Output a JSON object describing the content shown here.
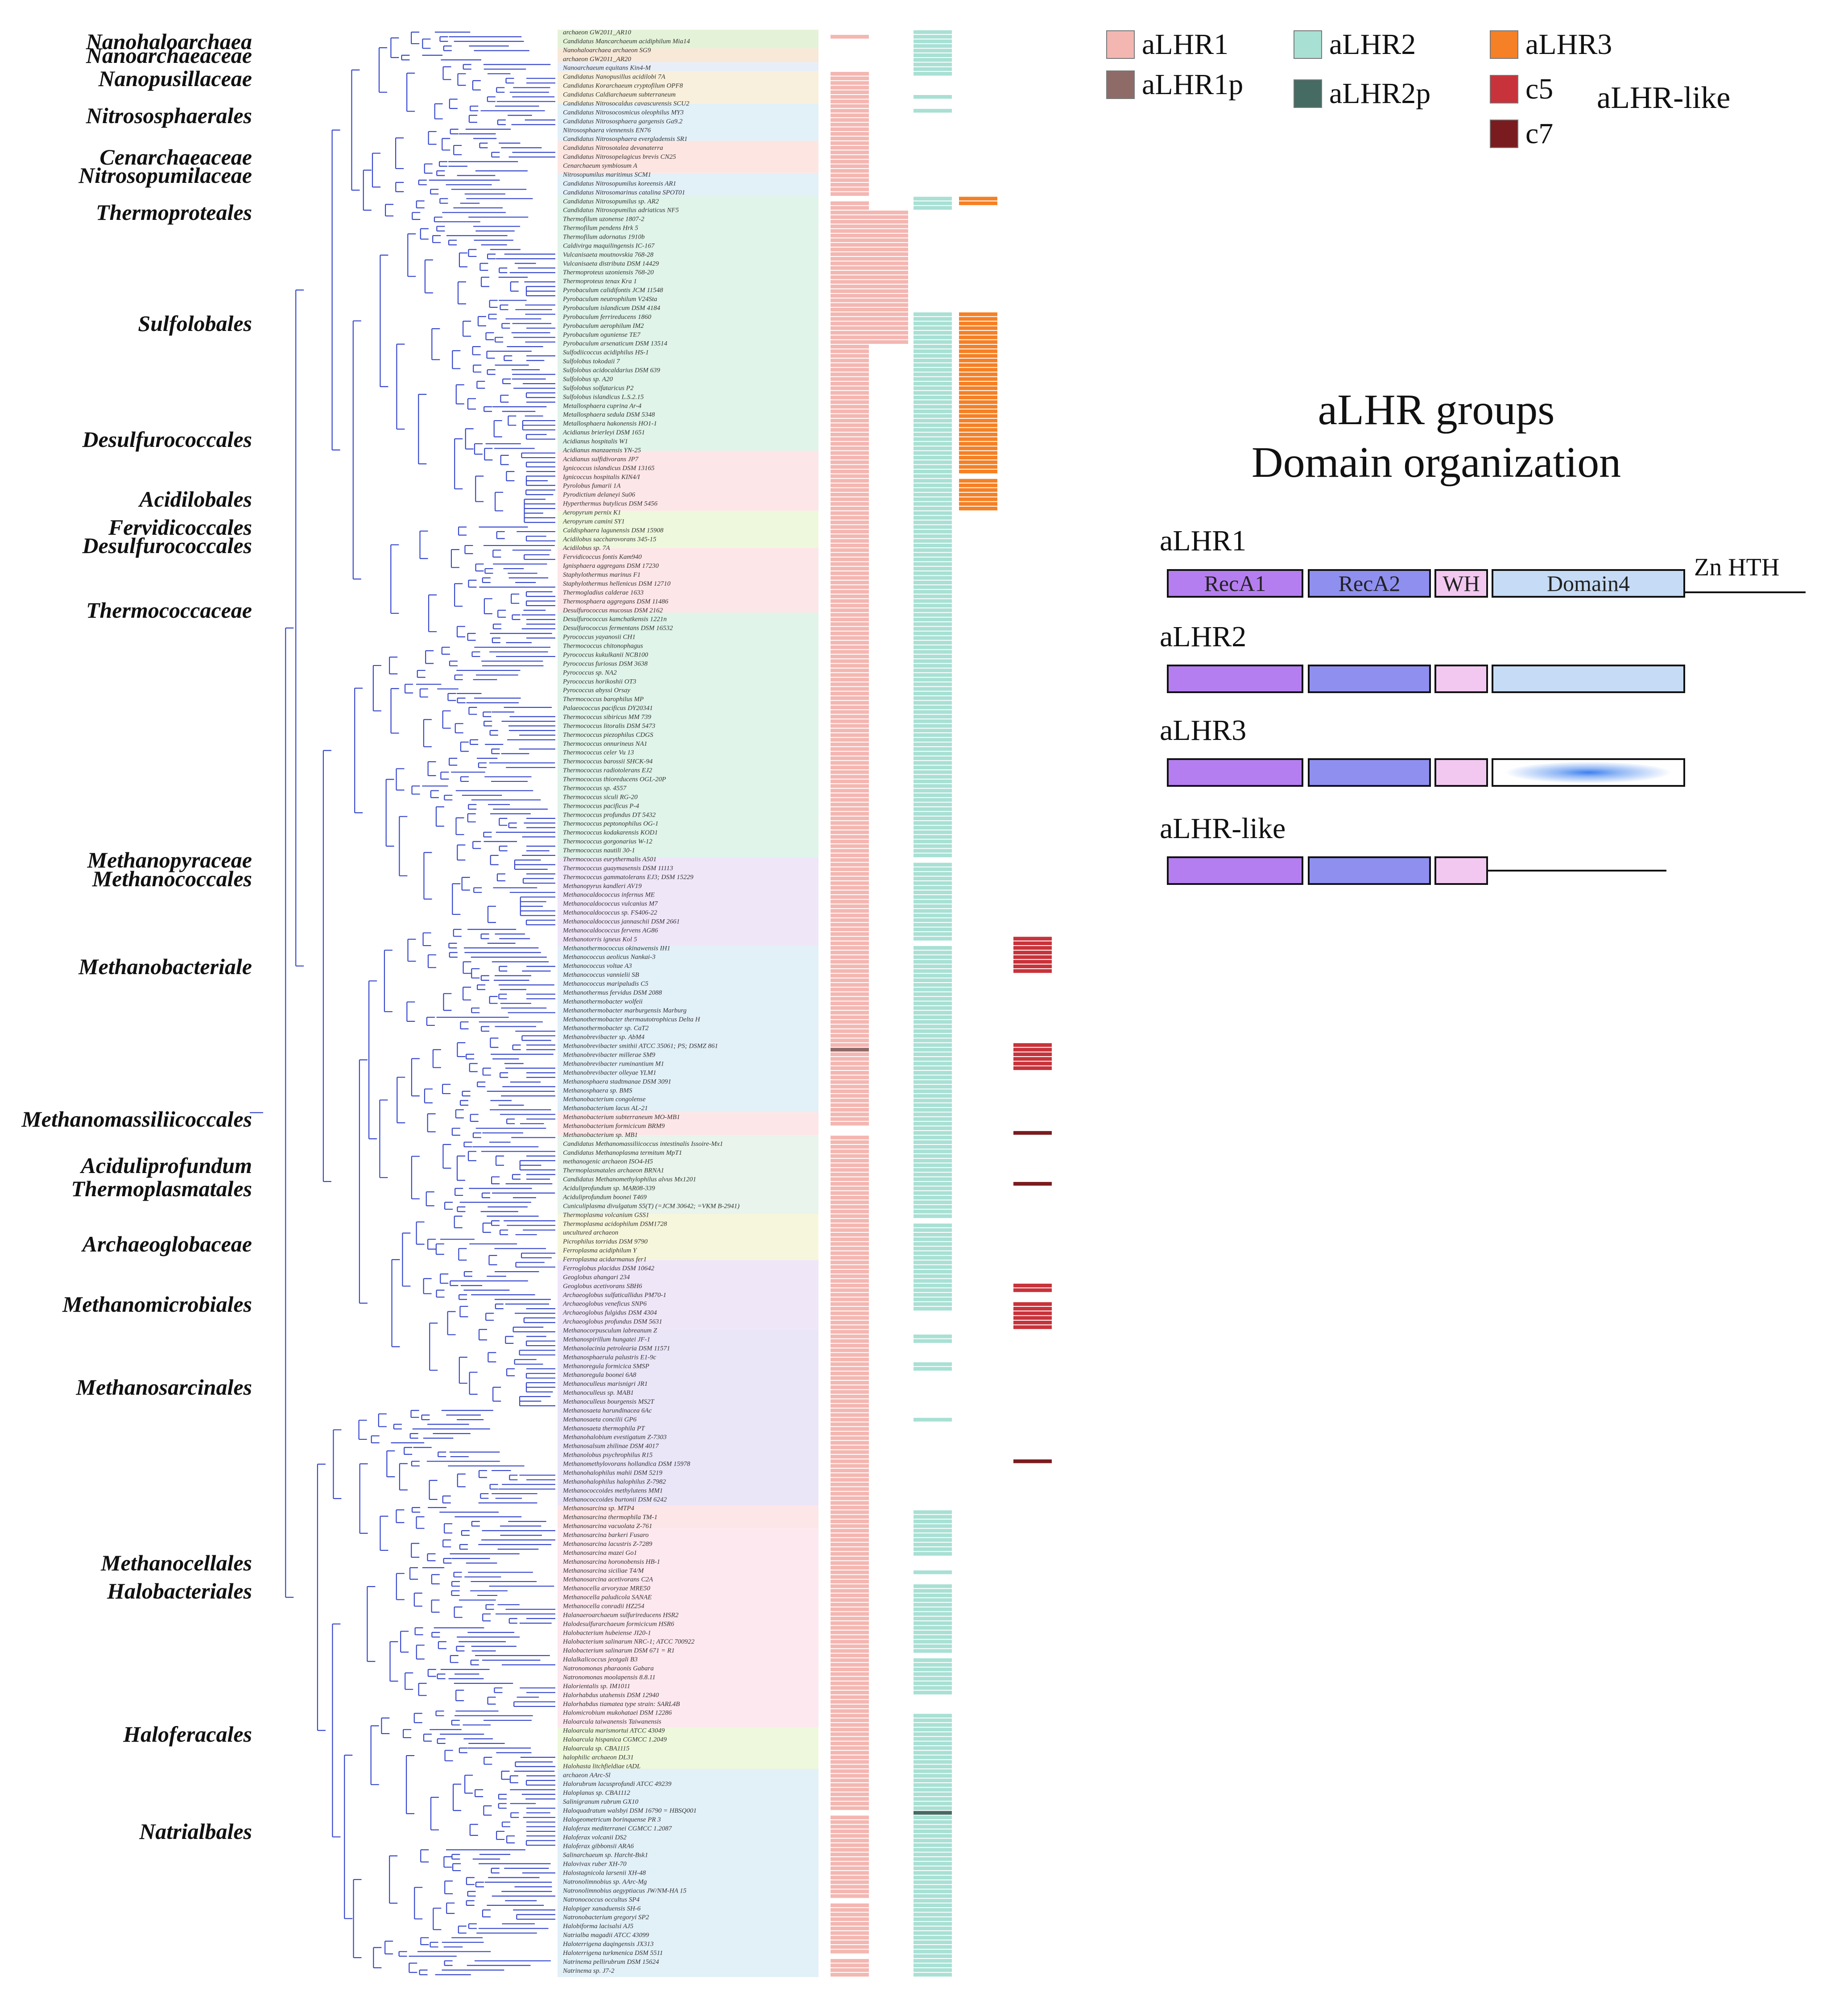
{
  "colors": {
    "aLHR1": "#f4b6b1",
    "aLHR1p": "#8f6b68",
    "aLHR2": "#a8e0d4",
    "aLHR2p": "#466b62",
    "aLHR3": "#f58025",
    "c5": "#c8323a",
    "c7": "#7a1c1f",
    "branch": "#3344cc",
    "recA1": "#b57ef0",
    "recA2": "#8f8ff0",
    "wh": "#f2c8f0",
    "domain4": "#c6dbf5"
  },
  "legend": {
    "items": [
      {
        "key": "aLHR1",
        "label": "aLHR1"
      },
      {
        "key": "aLHR2",
        "label": "aLHR2"
      },
      {
        "key": "aLHR3",
        "label": "aLHR3"
      },
      {
        "key": "aLHR1p",
        "label": "aLHR1p"
      },
      {
        "key": "aLHR2p",
        "label": "aLHR2p"
      },
      {
        "key": "c5",
        "label": "c5"
      },
      {
        "key": "c7",
        "label": "c7"
      }
    ],
    "group_label": "aLHR-like"
  },
  "domain_panel": {
    "title_line1": "aLHR groups",
    "title_line2": "Domain organization",
    "groups": [
      {
        "name": "aLHR1",
        "recA1": "RecA1",
        "recA2": "RecA2",
        "wh": "WH",
        "domain4": "Domain4",
        "extra": "Zn HTH"
      },
      {
        "name": "aLHR2"
      },
      {
        "name": "aLHR3"
      },
      {
        "name": "aLHR-like"
      }
    ]
  },
  "clades": [
    {
      "name": "Nanohaloarchaea",
      "row": 2
    },
    {
      "name": "Nanoarchaeaceae",
      "row": 5
    },
    {
      "name": "Nanopusillaceae",
      "row": 10
    },
    {
      "name": "Nitrososphaerales",
      "row": 18
    },
    {
      "name": "Cenarchaeaceae",
      "row": 27
    },
    {
      "name": "Nitrosopumilaceae",
      "row": 31
    },
    {
      "name": "Thermoproteales",
      "row": 39
    },
    {
      "name": "Sulfolobales",
      "row": 63
    },
    {
      "name": "Desulfurococcales",
      "row": 88
    },
    {
      "name": "Acidilobales",
      "row": 101
    },
    {
      "name": "Fervidicoccales",
      "row": 107
    },
    {
      "name": "Desulfurococcales",
      "row": 111
    },
    {
      "name": "Thermococcaceae",
      "row": 125
    },
    {
      "name": "Methanopyraceae",
      "row": 179
    },
    {
      "name": "Methanococcales",
      "row": 183
    },
    {
      "name": "Methanobacteriale",
      "row": 202
    },
    {
      "name": "Methanomassiliicoccales",
      "row": 235
    },
    {
      "name": "Aciduliprofundum",
      "row": 245
    },
    {
      "name": "Thermoplasmatales",
      "row": 250
    },
    {
      "name": "Archaeoglobaceae",
      "row": 262
    },
    {
      "name": "Methanomicrobiales",
      "row": 275
    },
    {
      "name": "Methanosarcinales",
      "row": 293
    },
    {
      "name": "Methanocellales",
      "row": 331
    },
    {
      "name": "Halobacteriales",
      "row": 337
    },
    {
      "name": "Haloferacales",
      "row": 368
    },
    {
      "name": "Natrialbales",
      "row": 389
    }
  ],
  "blocks": [
    {
      "start": 0,
      "end": 3,
      "color": "#e4f3d8"
    },
    {
      "start": 4,
      "end": 6,
      "color": "#f8e8d8"
    },
    {
      "start": 7,
      "end": 8,
      "color": "#e8eef8"
    },
    {
      "start": 9,
      "end": 15,
      "color": "#f8f0dc"
    },
    {
      "start": 16,
      "end": 23,
      "color": "#e2f0f8"
    },
    {
      "start": 24,
      "end": 30,
      "color": "#fde6e2"
    },
    {
      "start": 31,
      "end": 35,
      "color": "#e2f0f8"
    },
    {
      "start": 36,
      "end": 67,
      "color": "#e0f4ea"
    },
    {
      "start": 68,
      "end": 90,
      "color": "#e0f4ea"
    },
    {
      "start": 91,
      "end": 103,
      "color": "#fde6e8"
    },
    {
      "start": 104,
      "end": 111,
      "color": "#eef8dc"
    },
    {
      "start": 112,
      "end": 125,
      "color": "#fde6e8"
    },
    {
      "start": 126,
      "end": 178,
      "color": "#e0f4ea"
    },
    {
      "start": 179,
      "end": 197,
      "color": "#efe6f8"
    },
    {
      "start": 198,
      "end": 233,
      "color": "#e2f0f8"
    },
    {
      "start": 234,
      "end": 238,
      "color": "#fde6e8"
    },
    {
      "start": 239,
      "end": 255,
      "color": "#e8f4ec"
    },
    {
      "start": 256,
      "end": 265,
      "color": "#f6f6dc"
    },
    {
      "start": 266,
      "end": 280,
      "color": "#efe6f8"
    },
    {
      "start": 281,
      "end": 318,
      "color": "#eae6f8"
    },
    {
      "start": 319,
      "end": 323,
      "color": "#fde6e8"
    },
    {
      "start": 324,
      "end": 366,
      "color": "#fde8f0"
    },
    {
      "start": 367,
      "end": 375,
      "color": "#eef8dc"
    },
    {
      "start": 376,
      "end": 420,
      "color": "#e2f0f8"
    }
  ],
  "taxa": [
    "archaeon GW2011_AR10",
    "Candidatus Mancarchaeum acidiphilum Mia14",
    "Nanohaloarchaea archaeon SG9",
    "archaeon GW2011_AR20",
    "Nanoarchaeum equitans Kin4-M",
    "Candidatus Nanopusillus acidilobi 7A",
    "Candidatus Korarchaeum cryptofilum OPF8",
    "Candidatus Caldiarchaeum subterraneum",
    "Candidatus Nitrosocaldus cavascurensis SCU2",
    "Candidatus Nitrosocosmicus oleophilus MY3",
    "Candidatus Nitrososphaera gargensis Ga9.2",
    "Nitrososphaera viennensis EN76",
    "Candidatus Nitrososphaera evergladensis SR1",
    "Candidatus Nitrosotalea devanaterra",
    "Candidatus Nitrosopelagicus brevis CN25",
    "Cenarchaeum symbiosum A",
    "Nitrosopumilus maritimus SCM1",
    "Candidatus Nitrosopumilus koreensis AR1",
    "Candidatus Nitrosomarinus catalina SPOT01",
    "Candidatus Nitrosopumilus sp. AR2",
    "Candidatus Nitrosopumilus adriaticus NF5",
    "Thermofilum uzonense 1807-2",
    "Thermofilum pendens Hrk 5",
    "Thermofilum adornatus 1910b",
    "Caldivirga maquilingensis IC-167",
    "Vulcanisaeta moutnovskia 768-28",
    "Vulcanisaeta distributa DSM 14429",
    "Thermoproteus uzoniensis 768-20",
    "Thermoproteus tenax Kra 1",
    "Pyrobaculum calidifontis JCM 11548",
    "Pyrobaculum neutrophilum V24Sta",
    "Pyrobaculum islandicum DSM 4184",
    "Pyrobaculum ferrireducens 1860",
    "Pyrobaculum aerophilum IM2",
    "Pyrobaculum oguniense TE7",
    "Pyrobaculum arsenaticum DSM 13514",
    "Sulfodiicoccus acidiphilus HS-1",
    "Sulfolobus tokodaii 7",
    "Sulfolobus acidocaldarius DSM 639",
    "Sulfolobus sp. A20",
    "Sulfolobus solfataricus P2",
    "Sulfolobus islandicus L.S.2.15",
    "Metallosphaera cuprina Ar-4",
    "Metallosphaera sedula DSM 5348",
    "Metallosphaera hakonensis HO1-1",
    "Acidianus brierleyi DSM 1651",
    "Acidianus hospitalis W1",
    "Acidianus manzaensis YN-25",
    "Acidianus sulfidivorans JP7",
    "Ignicoccus islandicus DSM 13165",
    "Ignicoccus hospitalis KIN4/I",
    "Pyrolobus fumarii 1A",
    "Pyrodictium delaneyi Su06",
    "Hyperthermus butylicus DSM 5456",
    "Aeropyrum pernix K1",
    "Aeropyrum camini SY1",
    "Caldisphaera lagunensis DSM 15908",
    "Acidilobus saccharovorans 345-15",
    "Acidilobus sp. 7A",
    "Fervidicoccus fontis Kam940",
    "Ignisphaera aggregans DSM 17230",
    "Staphylothermus marinus F1",
    "Staphylothermus hellenicus DSM 12710",
    "Thermogladius calderae 1633",
    "Thermosphaera aggregans DSM 11486",
    "Desulfurococcus mucosus DSM 2162",
    "Desulfurococcus kamchatkensis 1221n",
    "Desulfurococcus fermentans DSM 16532",
    "Pyrococcus yayanosii CH1",
    "Thermococcus chitonophagus",
    "Pyrococcus kukulkanii NCB100",
    "Pyrococcus furiosus DSM 3638",
    "Pyrococcus sp. NA2",
    "Pyrococcus horikoshii OT3",
    "Pyrococcus abyssi Orsay",
    "Thermococcus barophilus MP",
    "Palaeococcus pacificus DY20341",
    "Thermococcus sibiricus MM 739",
    "Thermococcus litoralis DSM 5473",
    "Thermococcus piezophilus CDGS",
    "Thermococcus onnurineus NA1",
    "Thermococcus celer Vu 13",
    "Thermococcus barossii SHCK-94",
    "Thermococcus radiotolerans EJ2",
    "Thermococcus thioreducens OGL-20P",
    "Thermococcus sp. 4557",
    "Thermococcus siculi RG-20",
    "Thermococcus pacificus P-4",
    "Thermococcus profundus DT 5432",
    "Thermococcus peptonophilus OG-1",
    "Thermococcus kodakarensis KOD1",
    "Thermococcus gorgonarius W-12",
    "Thermococcus nautili 30-1",
    "Thermococcus eurythermalis A501",
    "Thermococcus guaymasensis DSM 11113",
    "Thermococcus gammatolerans EJ3; DSM 15229",
    "Methanopyrus kandleri AV19",
    "Methanocaldococcus infernus ME",
    "Methanocaldococcus vulcanius M7",
    "Methanocaldococcus sp. FS406-22",
    "Methanocaldococcus jannaschii DSM 2661",
    "Methanocaldococcus fervens AG86",
    "Methanotorris igneus Kol 5",
    "Methanothermococcus okinawensis IH1",
    "Methanococcus aeolicus Nankai-3",
    "Methanococcus voltae A3",
    "Methanococcus vannielii SB",
    "Methanococcus maripaludis C5",
    "Methanothermus fervidus DSM 2088",
    "Methanothermobacter wolfeii",
    "Methanothermobacter marburgensis Marburg",
    "Methanothermobacter thermautotrophicus Delta H",
    "Methanothermobacter sp. CaT2",
    "Methanobrevibacter sp. AbM4",
    "Methanobrevibacter smithii ATCC 35061; PS; DSMZ 861",
    "Methanobrevibacter millerae SM9",
    "Methanobrevibacter ruminantium M1",
    "Methanobrevibacter olleyae YLM1",
    "Methanosphaera stadtmanae DSM 3091",
    "Methanosphaera sp. BMS",
    "Methanobacterium congolense",
    "Methanobacterium lacus AL-21",
    "Methanobacterium subterraneum MO-MB1",
    "Methanobacterium formicicum BRM9",
    "Methanobacterium sp. MB1",
    "Candidatus Methanomassiliicoccus intestinalis Issoire-Mx1",
    "Candidatus Methanoplasma termitum MpT1",
    "methanogenic archaeon ISO4-H5",
    "Thermoplasmatales archaeon BRNA1",
    "Candidatus Methanomethylophilus alvus Mx1201",
    "Aciduliprofundum sp. MAR08-339",
    "Aciduliprofundum boonei T469",
    "Cuniculiplasma divulgatum S5(T) (=JCM 30642; =VKM B-2941)",
    "Thermoplasma volcanium GSS1",
    "Thermoplasma acidophilum DSM1728",
    "uncultured archaeon",
    "Picrophilus torridus DSM 9790",
    "Ferroplasma acidiphilum Y",
    "Ferroplasma acidarmanus fer1",
    "Ferroglobus placidus DSM 10642",
    "Geoglobus ahangari 234",
    "Geoglobus acetivorans SBH6",
    "Archaeoglobus sulfaticallidus PM70-1",
    "Archaeoglobus veneficus SNP6",
    "Archaeoglobus fulgidus DSM 4304",
    "Archaeoglobus profundus DSM 5631",
    "Methanocorpusculum labreanum Z",
    "Methanospirillum hungatei JF-1",
    "Methanolacinia petrolearia DSM 11571",
    "Methanosphaerula palustris E1-9c",
    "Methanoregula formicica SMSP",
    "Methanoregula boonei 6A8",
    "Methanoculleus marisnigri JR1",
    "Methanoculleus sp. MAB1",
    "Methanoculleus bourgensis MS2T",
    "Methanosaeta harundinacea 6Ac",
    "Methanosaeta concilii GP6",
    "Methanosaeta thermophila PT",
    "Methanohalobium evestigatum Z-7303",
    "Methanosalsum zhilinae DSM 4017",
    "Methanolobus psychrophilus R15",
    "Methanomethylovorans hollandica DSM 15978",
    "Methanohalophilus mahii DSM 5219",
    "Methanohalophilus halophilus Z-7982",
    "Methanococcoides methylutens MM1",
    "Methanococcoides burtonii DSM 6242",
    "Methanosarcina sp. MTP4",
    "Methanosarcina thermophila TM-1",
    "Methanosarcina vacuolata Z-761",
    "Methanosarcina barkeri Fusaro",
    "Methanosarcina lacustris Z-7289",
    "Methanosarcina mazei Go1",
    "Methanosarcina horonobensis HB-1",
    "Methanosarcina siciliae T4/M",
    "Methanosarcina acetivorans C2A",
    "Methanocella arvoryzae MRE50",
    "Methanocella paludicola SANAE",
    "Methanocella conradii HZ254",
    "Halanaeroarchaeum sulfurireducens HSR2",
    "Halodesulfurarchaeum formicicum HSR6",
    "Halobacterium hubeiense JI20-1",
    "Halobacterium salinarum NRC-1; ATCC 700922",
    "Halobacterium salinarum DSM 671 = R1",
    "Halalkalicoccus jeotgali B3",
    "Natronomonas pharaonis Gabara",
    "Natronomonas moolapensis 8.8.11",
    "Halorientalis sp. IM1011",
    "Halorhabdus utahensis DSM 12940",
    "Halorhabdus tiamatea type strain: SARL4B",
    "Halomicrobium mukohataei DSM 12286",
    "Haloarcula taiwanensis Taiwanensis",
    "Haloarcula marismortui ATCC 43049",
    "Haloarcula hispanica CGMCC 1.2049",
    "Haloarcula sp. CBA1115",
    "halophilic archaeon DL31",
    "Halohasta litchfieldiae tADL",
    "archaeon AArc-Sl",
    "Halorubrum lacusprofundi ATCC 49239",
    "Haloplanus sp. CBA1112",
    "Salinigranum rubrum GX10",
    "Haloquadratum walsbyi DSM 16790 = HBSQ001",
    "Halogeometricum borinquense PR 3",
    "Haloferax mediterranei CGMCC 1.2087",
    "Haloferax volcanii DS2",
    "Haloferax gibbonsii ARA6",
    "Salinarchaeum sp. Harcht-Bsk1",
    "Halovivax ruber XH-70",
    "Halostagnicola larsenii XH-48",
    "Natronolimnobius sp. AArc-Mg",
    "Natronolimnobius aegyptiacus JW/NM-HA 15",
    "Natronococcus occultus SP4",
    "Halopiger xanaduensis SH-6",
    "Natronobacterium gregoryi SP2",
    "Halobiforma lacisalsi AJ5",
    "Natrialba magadii ATCC 43099",
    "Haloterrigena daqingensis JX313",
    "Haloterrigena turkmenica DSM 5511",
    "Natrinema pellirubrum DSM 15624",
    "Natrinema sp. J7-2"
  ],
  "columns": {
    "aLHR1": [
      [
        1,
        1
      ],
      [
        9,
        35
      ],
      [
        37,
        219
      ],
      [
        220,
        220,
        "p"
      ],
      [
        221,
        236
      ],
      [
        239,
        384
      ],
      [
        386,
        403
      ],
      [
        405,
        415
      ],
      [
        417,
        420
      ]
    ],
    "aLHR1b": [
      [
        39,
        67
      ]
    ],
    "aLHR2": [
      [
        0,
        9
      ],
      [
        14,
        14
      ],
      [
        17,
        17
      ],
      [
        36,
        38
      ],
      [
        61,
        111
      ],
      [
        112,
        169
      ],
      [
        170,
        178
      ],
      [
        180,
        196
      ],
      [
        198,
        256
      ],
      [
        258,
        274
      ],
      [
        275,
        276
      ],
      [
        282,
        283
      ],
      [
        288,
        289
      ],
      [
        300,
        300
      ],
      [
        320,
        329
      ],
      [
        333,
        333
      ],
      [
        336,
        350
      ],
      [
        352,
        359
      ],
      [
        364,
        372
      ],
      [
        373,
        380
      ],
      [
        381,
        384
      ],
      [
        385,
        385,
        "p"
      ],
      [
        386,
        420
      ]
    ],
    "aLHR3": [
      [
        36,
        37
      ],
      [
        61,
        95
      ],
      [
        97,
        103
      ]
    ],
    "c5": [
      [
        196,
        203
      ],
      [
        219,
        224
      ],
      [
        271,
        272
      ],
      [
        275,
        280
      ]
    ],
    "c7": [
      [
        238,
        238
      ],
      [
        249,
        249
      ],
      [
        309,
        309
      ]
    ]
  },
  "tree": {
    "rows": 421,
    "seed": 17
  }
}
